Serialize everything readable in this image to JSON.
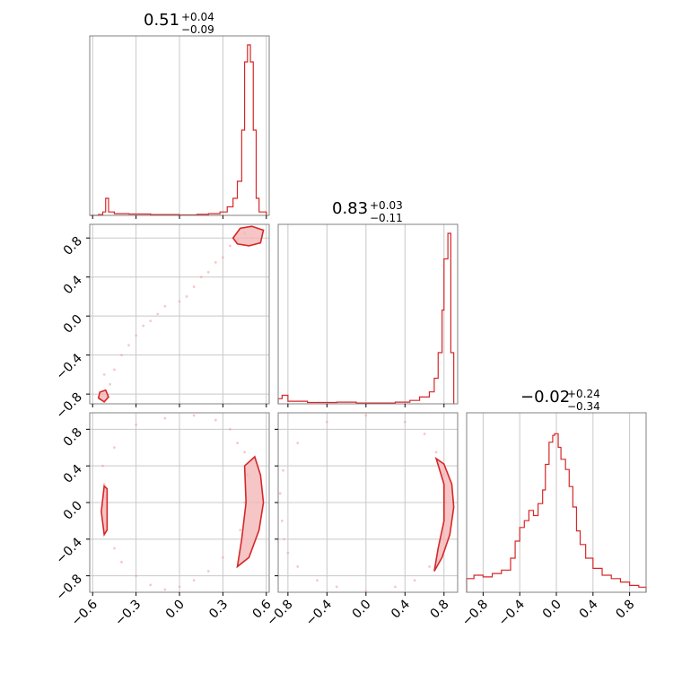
{
  "chart_data": {
    "type": "corner",
    "color": "#d62728",
    "fill_color": "#f4b6b8",
    "grid": true,
    "axes_ticks": {
      "p0": {
        "values": [
          -0.6,
          -0.3,
          0.0,
          0.3,
          0.6
        ],
        "labels": [
          "−0.6",
          "−0.3",
          "0.0",
          "0.3",
          "0.6"
        ],
        "range": [
          -0.62,
          0.62
        ]
      },
      "p1": {
        "values": [
          -0.8,
          -0.4,
          0.0,
          0.4,
          0.8
        ],
        "labels": [
          "−0.8",
          "−0.4",
          "0.0",
          "0.4",
          "0.8"
        ],
        "range": [
          -0.9,
          0.94
        ]
      },
      "p2": {
        "values": [
          -0.8,
          -0.4,
          0.0,
          0.4,
          0.8
        ],
        "labels": [
          "−0.8",
          "−0.4",
          "0.0",
          "0.4",
          "0.8"
        ],
        "range": [
          -0.98,
          0.98
        ]
      }
    },
    "marginals": [
      {
        "param": "p0",
        "title": {
          "median": "0.51",
          "plus": "+0.04",
          "minus": "−0.09"
        },
        "hist": [
          [
            -0.62,
            0
          ],
          [
            -0.56,
            0.005
          ],
          [
            -0.53,
            0.02
          ],
          [
            -0.51,
            0.1
          ],
          [
            -0.49,
            0.02
          ],
          [
            -0.45,
            0.01
          ],
          [
            -0.35,
            0.008
          ],
          [
            -0.2,
            0.005
          ],
          [
            0.0,
            0.003
          ],
          [
            0.12,
            0.006
          ],
          [
            0.2,
            0.01
          ],
          [
            0.28,
            0.02
          ],
          [
            0.33,
            0.05
          ],
          [
            0.37,
            0.1
          ],
          [
            0.4,
            0.2
          ],
          [
            0.43,
            0.5
          ],
          [
            0.45,
            0.9
          ],
          [
            0.47,
            1.0
          ],
          [
            0.49,
            0.9
          ],
          [
            0.51,
            0.5
          ],
          [
            0.53,
            0.1
          ],
          [
            0.55,
            0.02
          ],
          [
            0.6,
            0
          ]
        ]
      },
      {
        "param": "p1",
        "title": {
          "median": "0.83",
          "plus": "+0.03",
          "minus": "−0.11"
        },
        "hist": [
          [
            -0.9,
            0.03
          ],
          [
            -0.86,
            0.05
          ],
          [
            -0.8,
            0.015
          ],
          [
            -0.6,
            0.008
          ],
          [
            -0.3,
            0.01
          ],
          [
            -0.1,
            0.005
          ],
          [
            0.3,
            0.01
          ],
          [
            0.45,
            0.02
          ],
          [
            0.55,
            0.04
          ],
          [
            0.65,
            0.07
          ],
          [
            0.7,
            0.15
          ],
          [
            0.74,
            0.3
          ],
          [
            0.78,
            0.55
          ],
          [
            0.8,
            0.85
          ],
          [
            0.84,
            1.0
          ],
          [
            0.87,
            0.3
          ],
          [
            0.9,
            0.04
          ]
        ]
      },
      {
        "param": "p2",
        "title": {
          "median": "−0.02",
          "plus": "+0.24",
          "minus": "−0.34"
        },
        "hist": [
          [
            -0.98,
            0.08
          ],
          [
            -0.9,
            0.1
          ],
          [
            -0.8,
            0.09
          ],
          [
            -0.7,
            0.11
          ],
          [
            -0.6,
            0.13
          ],
          [
            -0.5,
            0.2
          ],
          [
            -0.45,
            0.3
          ],
          [
            -0.4,
            0.38
          ],
          [
            -0.35,
            0.42
          ],
          [
            -0.3,
            0.48
          ],
          [
            -0.25,
            0.45
          ],
          [
            -0.2,
            0.52
          ],
          [
            -0.15,
            0.6
          ],
          [
            -0.12,
            0.75
          ],
          [
            -0.08,
            0.88
          ],
          [
            -0.04,
            0.92
          ],
          [
            -0.02,
            0.93
          ],
          [
            0.02,
            0.85
          ],
          [
            0.05,
            0.78
          ],
          [
            0.1,
            0.72
          ],
          [
            0.14,
            0.62
          ],
          [
            0.18,
            0.5
          ],
          [
            0.22,
            0.36
          ],
          [
            0.26,
            0.28
          ],
          [
            0.32,
            0.2
          ],
          [
            0.4,
            0.14
          ],
          [
            0.5,
            0.1
          ],
          [
            0.6,
            0.08
          ],
          [
            0.7,
            0.06
          ],
          [
            0.8,
            0.04
          ],
          [
            0.9,
            0.03
          ],
          [
            0.98,
            0.02
          ]
        ]
      }
    ],
    "scatter": [
      {
        "x": "p0",
        "y": "p1",
        "points": [
          [
            -0.55,
            -0.85
          ],
          [
            -0.53,
            -0.8
          ],
          [
            -0.5,
            -0.83
          ],
          [
            -0.48,
            -0.7
          ],
          [
            -0.45,
            -0.55
          ],
          [
            -0.4,
            -0.4
          ],
          [
            -0.35,
            -0.3
          ],
          [
            -0.3,
            -0.2
          ],
          [
            -0.2,
            -0.05
          ],
          [
            -0.1,
            0.1
          ],
          [
            0.0,
            0.15
          ],
          [
            0.1,
            0.3
          ],
          [
            0.2,
            0.45
          ],
          [
            0.3,
            0.6
          ],
          [
            0.35,
            0.72
          ],
          [
            0.4,
            0.78
          ],
          [
            0.45,
            0.85
          ],
          [
            0.5,
            0.8
          ],
          [
            0.55,
            0.75
          ],
          [
            -0.52,
            -0.6
          ],
          [
            -0.25,
            -0.1
          ],
          [
            0.15,
            0.4
          ],
          [
            0.05,
            0.2
          ],
          [
            -0.15,
            0.02
          ],
          [
            0.25,
            0.55
          ]
        ],
        "contours": [
          {
            "kind": "filled",
            "points": [
              [
                0.37,
                0.8
              ],
              [
                0.42,
                0.9
              ],
              [
                0.5,
                0.92
              ],
              [
                0.58,
                0.88
              ],
              [
                0.56,
                0.75
              ],
              [
                0.48,
                0.72
              ],
              [
                0.4,
                0.74
              ]
            ]
          },
          {
            "kind": "filled",
            "points": [
              [
                -0.55,
                -0.78
              ],
              [
                -0.51,
                -0.76
              ],
              [
                -0.49,
                -0.83
              ],
              [
                -0.52,
                -0.88
              ],
              [
                -0.56,
                -0.84
              ]
            ]
          }
        ]
      },
      {
        "x": "p0",
        "y": "p2",
        "points": [
          [
            -0.52,
            0.2
          ],
          [
            -0.52,
            -0.3
          ],
          [
            -0.5,
            0.0
          ],
          [
            -0.45,
            -0.5
          ],
          [
            -0.4,
            -0.65
          ],
          [
            -0.3,
            -0.8
          ],
          [
            -0.2,
            -0.9
          ],
          [
            -0.1,
            -0.95
          ],
          [
            0.0,
            -0.92
          ],
          [
            0.1,
            -0.85
          ],
          [
            0.2,
            -0.75
          ],
          [
            0.3,
            -0.6
          ],
          [
            0.42,
            -0.3
          ],
          [
            0.45,
            0.0
          ],
          [
            0.47,
            0.3
          ],
          [
            0.45,
            0.55
          ],
          [
            0.4,
            0.65
          ],
          [
            0.35,
            0.8
          ],
          [
            0.25,
            0.9
          ],
          [
            0.1,
            0.95
          ],
          [
            -0.1,
            0.92
          ],
          [
            -0.3,
            0.85
          ],
          [
            -0.45,
            0.6
          ],
          [
            -0.53,
            0.4
          ]
        ],
        "contours": [
          {
            "kind": "filled",
            "points": [
              [
                0.45,
                0.4
              ],
              [
                0.52,
                0.5
              ],
              [
                0.56,
                0.3
              ],
              [
                0.58,
                0.0
              ],
              [
                0.55,
                -0.3
              ],
              [
                0.48,
                -0.6
              ],
              [
                0.4,
                -0.7
              ],
              [
                0.43,
                -0.4
              ],
              [
                0.46,
                0.0
              ]
            ]
          },
          {
            "kind": "filled",
            "points": [
              [
                -0.52,
                0.18
              ],
              [
                -0.5,
                0.15
              ],
              [
                -0.5,
                -0.3
              ],
              [
                -0.52,
                -0.35
              ],
              [
                -0.54,
                -0.1
              ]
            ]
          }
        ]
      },
      {
        "x": "p1",
        "y": "p2",
        "points": [
          [
            -0.88,
            0.1
          ],
          [
            -0.86,
            -0.2
          ],
          [
            -0.84,
            -0.4
          ],
          [
            -0.8,
            -0.55
          ],
          [
            -0.7,
            -0.7
          ],
          [
            -0.5,
            -0.85
          ],
          [
            -0.3,
            -0.92
          ],
          [
            0.0,
            -0.97
          ],
          [
            0.3,
            -0.92
          ],
          [
            0.5,
            -0.85
          ],
          [
            0.65,
            -0.7
          ],
          [
            0.78,
            -0.4
          ],
          [
            0.82,
            0.0
          ],
          [
            0.8,
            0.3
          ],
          [
            0.72,
            0.55
          ],
          [
            0.6,
            0.75
          ],
          [
            0.4,
            0.88
          ],
          [
            0.0,
            0.95
          ],
          [
            -0.4,
            0.88
          ],
          [
            -0.7,
            0.65
          ],
          [
            -0.85,
            0.35
          ]
        ],
        "contours": [
          {
            "kind": "filled",
            "points": [
              [
                0.72,
                0.48
              ],
              [
                0.8,
                0.42
              ],
              [
                0.88,
                0.2
              ],
              [
                0.9,
                -0.05
              ],
              [
                0.86,
                -0.35
              ],
              [
                0.78,
                -0.6
              ],
              [
                0.7,
                -0.75
              ],
              [
                0.74,
                -0.5
              ],
              [
                0.8,
                -0.2
              ],
              [
                0.8,
                0.2
              ]
            ]
          }
        ]
      }
    ]
  }
}
